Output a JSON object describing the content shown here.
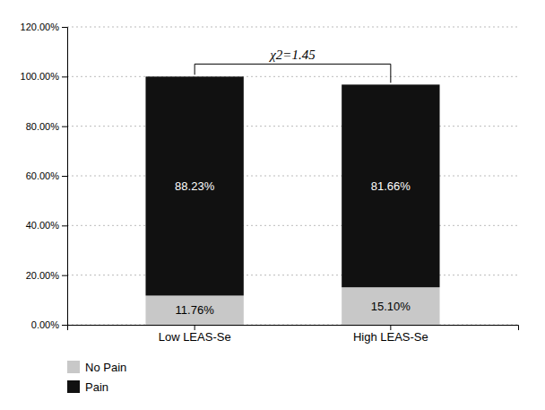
{
  "chart_data": {
    "type": "bar",
    "stacked": true,
    "data_labels": true,
    "grid": true,
    "legend": "bottom",
    "categories": [
      "Low LEAS-Se",
      "High LEAS-Se"
    ],
    "series": [
      {
        "name": "No Pain",
        "color": "#c8c8c8",
        "values": [
          0.1176,
          0.151
        ],
        "value_labels": [
          "11.76%",
          "15.10%"
        ]
      },
      {
        "name": "Pain",
        "color": "#111111",
        "values": [
          0.8823,
          0.8166
        ],
        "value_labels": [
          "88.23%",
          "81.66%"
        ]
      }
    ],
    "ylim": [
      0,
      1.2
    ],
    "yticks": [
      {
        "value": 0.0,
        "label": "0.00%"
      },
      {
        "value": 0.2,
        "label": "20.00%"
      },
      {
        "value": 0.4,
        "label": "40.00%"
      },
      {
        "value": 0.6,
        "label": "60.00%"
      },
      {
        "value": 0.8,
        "label": "80.00%"
      },
      {
        "value": 1.0,
        "label": "100.00%"
      },
      {
        "value": 1.2,
        "label": "120.00%"
      }
    ],
    "annotations": [
      "χ2=1.45"
    ]
  }
}
